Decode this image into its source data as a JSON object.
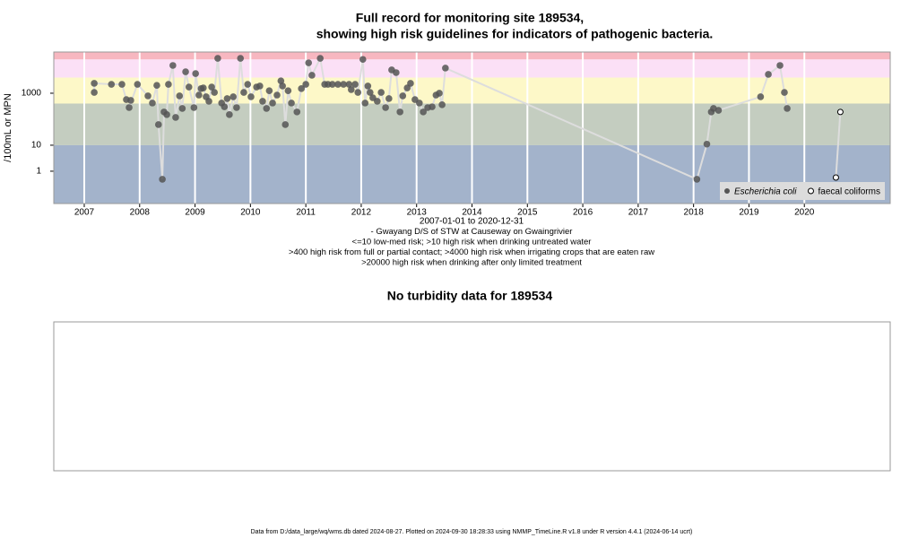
{
  "chart_data": [
    {
      "type": "line",
      "title": "Full record for monitoring site 189534,",
      "subtitle": "showing high risk guidelines for indicators of pathogenic bacteria.",
      "ylabel": "/100mL or MPN",
      "xlabel": "2007-01-01 to 2020-12-31",
      "notes": [
        "- Gwayang D/S of STW at Causeway on Gwaingrivier",
        "<=10 low-med risk; >10 high risk when drinking untreated water",
        ">400 high risk from full or partial contact; >4000 high risk when irrigating crops that are eaten raw",
        ">20000 high risk when drinking after only limited treatment"
      ],
      "log_y": true,
      "xlim": [
        2006.45,
        2021.55
      ],
      "xticks": [
        2007,
        2008,
        2009,
        2010,
        2011,
        2012,
        2013,
        2014,
        2015,
        2016,
        2017,
        2018,
        2019,
        2020
      ],
      "ylim": [
        0.057,
        38500
      ],
      "yticks": [
        1,
        10,
        1000
      ],
      "grid": true,
      "thresholds": [
        10,
        400,
        4000,
        20000
      ],
      "band_colors": [
        "#a3b3cb",
        "#c4cdc0",
        "#fdf8c8",
        "#fbe0f6",
        "#f7b7c0"
      ],
      "line_color": "#dddddd",
      "legend": "bottom-right",
      "series": [
        {
          "name": "Escherichia coli",
          "color": "#555555",
          "marker": "filled",
          "x": [
            2007.18,
            2007.18,
            2007.49,
            2007.68,
            2007.76,
            2007.84,
            2007.81,
            2007.96,
            2008.15,
            2008.23,
            2008.31,
            2008.34,
            2008.41,
            2008.44,
            2008.49,
            2008.52,
            2008.6,
            2008.65,
            2008.72,
            2008.77,
            2008.83,
            2008.89,
            2008.98,
            2009.01,
            2009.07,
            2009.11,
            2009.15,
            2009.2,
            2009.25,
            2009.3,
            2009.35,
            2009.41,
            2009.48,
            2009.53,
            2009.58,
            2009.62,
            2009.69,
            2009.75,
            2009.82,
            2009.88,
            2009.95,
            2010.01,
            2010.11,
            2010.17,
            2010.22,
            2010.29,
            2010.34,
            2010.4,
            2010.48,
            2010.55,
            2010.58,
            2010.63,
            2010.68,
            2010.74,
            2010.84,
            2010.92,
            2011.0,
            2011.05,
            2011.11,
            2011.26,
            2011.34,
            2011.4,
            2011.48,
            2011.58,
            2011.68,
            2011.78,
            2011.82,
            2011.89,
            2011.94,
            2012.03,
            2012.07,
            2012.12,
            2012.16,
            2012.21,
            2012.29,
            2012.36,
            2012.44,
            2012.5,
            2012.55,
            2012.63,
            2012.7,
            2012.75,
            2012.83,
            2012.89,
            2012.97,
            2013.05,
            2013.12,
            2013.2,
            2013.28,
            2013.35,
            2013.41,
            2013.46,
            2013.52,
            2018.06,
            2018.24,
            2018.32,
            2018.36,
            2018.45,
            2019.21,
            2019.35,
            2019.56,
            2019.64,
            2019.69
          ],
          "values": [
            1070,
            2400,
            2200,
            2200,
            570,
            530,
            280,
            2200,
            790,
            420,
            2000,
            62,
            0.49,
            190,
            150,
            2200,
            11700,
            117,
            790,
            260,
            6700,
            1730,
            280,
            5700,
            850,
            1500,
            1600,
            730,
            490,
            1730,
            1070,
            22000,
            420,
            300,
            620,
            150,
            730,
            280,
            22000,
            1070,
            2200,
            730,
            1730,
            1900,
            490,
            260,
            1250,
            420,
            850,
            3000,
            1900,
            62,
            1250,
            420,
            190,
            1500,
            2200,
            14800,
            4900,
            22000,
            2200,
            2200,
            2200,
            2200,
            2200,
            2200,
            1380,
            2200,
            1070,
            20000,
            420,
            1900,
            1070,
            670,
            490,
            1070,
            280,
            620,
            7900,
            6200,
            190,
            790,
            1600,
            2400,
            570,
            420,
            190,
            280,
            300,
            850,
            1000,
            360,
            9300,
            0.49,
            11,
            190,
            260,
            220,
            730,
            5300,
            11700,
            1070,
            260
          ]
        },
        {
          "name": "faecal coliforms",
          "color": "#000000",
          "marker": "open",
          "x": [
            2020.57,
            2020.65
          ],
          "values": [
            0.57,
            190
          ]
        }
      ]
    },
    {
      "type": "empty",
      "title": "No turbidity data for 189534"
    }
  ],
  "footer": "Data from D:/data_large/wq/wms.db dated 2024-08-27. Plotted on 2024-09-30 18:28:33 using NMMP_TimeLine.R v1.8 under R version 4.4.1 (2024-06-14 ucrt)"
}
